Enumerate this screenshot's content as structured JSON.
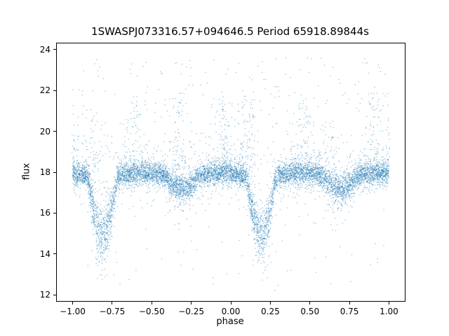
{
  "chart_data": {
    "type": "scatter",
    "title": "1SWASPJ073316.57+094646.5 Period 65918.89844s",
    "xlabel": "phase",
    "ylabel": "flux",
    "xlim": [
      -1.1,
      1.1
    ],
    "ylim": [
      11.7,
      24.3
    ],
    "x_ticks": [
      -1.0,
      -0.75,
      -0.5,
      -0.25,
      0.0,
      0.25,
      0.5,
      0.75,
      1.0
    ],
    "x_tick_labels": [
      "−1.00",
      "−0.75",
      "−0.50",
      "−0.25",
      "0.00",
      "0.25",
      "0.50",
      "0.75",
      "1.00"
    ],
    "y_ticks": [
      12,
      14,
      16,
      18,
      20,
      22,
      24
    ],
    "y_tick_labels": [
      "12",
      "14",
      "16",
      "18",
      "20",
      "22",
      "24"
    ],
    "grid": false,
    "legend": null,
    "marker_color": "#1f77b4",
    "marker_alpha": 0.45,
    "marker_size": 1.3,
    "model": {
      "description": "Phase-folded eclipsing-binary light curve: dense band near flux 17.8-18 with deep primary eclipses to ~15 at phases -0.81 and +0.19, shallow secondary dips at -0.31 and +0.69, diffuse upward outlier plumes to ~22 and sparse outliers 12-23.6",
      "seed": 12345,
      "n_core": 8000,
      "baseline_flux": 17.72,
      "ellipsoidal_amp": 0.25,
      "band_sigma": 0.28,
      "halo_fraction": 0.15,
      "halo_sigma_mult": 2.3,
      "primary_eclipse": {
        "centers": [
          -0.81,
          0.19
        ],
        "depth": 2.7,
        "half_width": 0.095
      },
      "secondary_eclipse": {
        "centers": [
          -0.31,
          0.69
        ],
        "depth": 0.5,
        "half_width": 0.11
      },
      "plumes": [
        {
          "center": -1.0,
          "n": 45,
          "height": 3.1
        },
        {
          "center": -0.87,
          "n": 40,
          "height": 3.3
        },
        {
          "center": -0.63,
          "n": 85,
          "height": 3.6
        },
        {
          "center": -0.33,
          "n": 85,
          "height": 3.9
        },
        {
          "center": -0.04,
          "n": 110,
          "height": 3.4
        },
        {
          "center": 0.1,
          "n": 90,
          "height": 3.7
        },
        {
          "center": 0.45,
          "n": 85,
          "height": 3.7
        },
        {
          "center": 0.63,
          "n": 35,
          "height": 2.6
        },
        {
          "center": 0.9,
          "n": 100,
          "height": 3.9
        },
        {
          "center": 0.99,
          "n": 45,
          "height": 3.2
        }
      ],
      "n_outliers": 420,
      "outlier_flux_range": [
        12.2,
        23.6
      ]
    }
  }
}
